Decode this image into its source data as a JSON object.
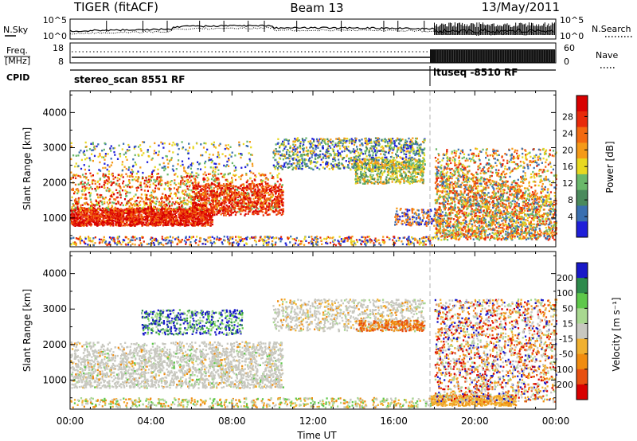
{
  "header": {
    "radar": "TIGER (fitACF)",
    "beam": "Beam 13",
    "date": "13/May/2011"
  },
  "noise_panel": {
    "left_label": "N.Sky",
    "right_label": "N.Search",
    "left_ticks": [
      "10^5",
      "10^0"
    ],
    "right_ticks": [
      "10^5",
      "10^0"
    ]
  },
  "freq_panel": {
    "left_label_1": "Freq.",
    "left_label_2": "[MHz]",
    "right_label": "Nave",
    "left_ticks": [
      "18",
      "8"
    ],
    "right_ticks": [
      "60",
      "0"
    ]
  },
  "cpid_panel": {
    "label": "CPID",
    "segments": [
      {
        "name": "stereo_scan 8551 RF",
        "start_hour": 0
      },
      {
        "name": "ltuseq -8510 RF",
        "start_hour": 18
      }
    ]
  },
  "colors": {
    "power": [
      "#1f1fd9",
      "#3a6fb0",
      "#4a8a5c",
      "#6ab86a",
      "#e8d820",
      "#f59a18",
      "#f36a10",
      "#e82a0a",
      "#d80000"
    ],
    "velocity": [
      "#1818c8",
      "#2e8a4c",
      "#5ec84a",
      "#a8d890",
      "#c8c8c0",
      "#f0b030",
      "#f08c10",
      "#e85010",
      "#d80000"
    ],
    "marker": "#b0b0b0"
  },
  "chart_data": [
    {
      "type": "heatmap",
      "name": "power",
      "ylabel": "Slant Range [km]",
      "y_ticks": [
        "1000",
        "2000",
        "3000",
        "4000"
      ],
      "ylim": [
        180,
        4620
      ],
      "x_ticks": [
        "00:00",
        "04:00",
        "08:00",
        "12:00",
        "16:00",
        "20:00",
        "00:00"
      ],
      "xlim_hours": [
        0,
        24
      ],
      "colorbar": {
        "label": "Power [dB]",
        "ticks": [
          "4",
          "8",
          "12",
          "16",
          "20",
          "24",
          "28"
        ]
      }
    },
    {
      "type": "heatmap",
      "name": "velocity",
      "ylabel": "Slant Range [km]",
      "y_ticks": [
        "1000",
        "2000",
        "3000",
        "4000"
      ],
      "ylim": [
        180,
        4620
      ],
      "x_ticks": [
        "00:00",
        "04:00",
        "08:00",
        "12:00",
        "16:00",
        "20:00",
        "00:00"
      ],
      "xlim_hours": [
        0,
        24
      ],
      "xlabel": "Time UT",
      "colorbar": {
        "label": "Velocity [m s⁻¹]",
        "ticks": [
          "200",
          "100",
          "50",
          "15",
          "-15",
          "-50",
          "-100",
          "-200"
        ]
      }
    }
  ]
}
